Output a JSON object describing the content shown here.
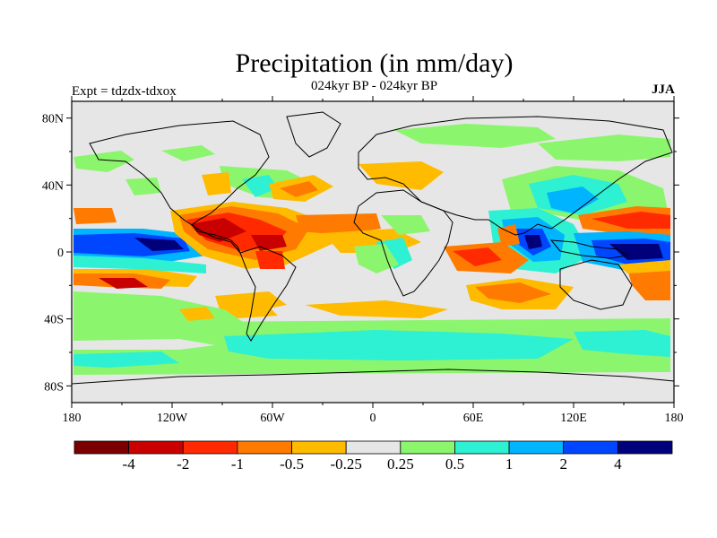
{
  "map": {
    "title": "Precipitation (in mm/day)",
    "subtitle": "024kyr BP - 024kyr BP",
    "left_label": "Expt = tdzdx-tdxox",
    "right_label": "JJA",
    "projection": "cylindrical-equidistant",
    "lon_range": [
      -180,
      180
    ],
    "lat_range": [
      -90,
      90
    ],
    "lat_ticks": [
      {
        "value": 80,
        "label": "80N"
      },
      {
        "value": 40,
        "label": "40N"
      },
      {
        "value": 0,
        "label": "0"
      },
      {
        "value": -40,
        "label": "40S"
      },
      {
        "value": -80,
        "label": "80S"
      }
    ],
    "lon_ticks": [
      {
        "value": -180,
        "label": "180"
      },
      {
        "value": -120,
        "label": "120W"
      },
      {
        "value": -60,
        "label": "60W"
      },
      {
        "value": 0,
        "label": "0"
      },
      {
        "value": 60,
        "label": "60E"
      },
      {
        "value": 120,
        "label": "120E"
      },
      {
        "value": 180,
        "label": "180"
      }
    ],
    "background_color": "#e6e6e6"
  },
  "colorbar": {
    "colors": [
      "#7a0000",
      "#c80000",
      "#ff2a00",
      "#ff7a00",
      "#ffbb00",
      "#e6e6e6",
      "#8cf56e",
      "#2ef0d2",
      "#00b4ff",
      "#0046ff",
      "#00007a"
    ],
    "labels": [
      "-4",
      "-2",
      "-1",
      "-0.5",
      "-0.25",
      "0.25",
      "0.5",
      "1",
      "2",
      "4"
    ]
  }
}
